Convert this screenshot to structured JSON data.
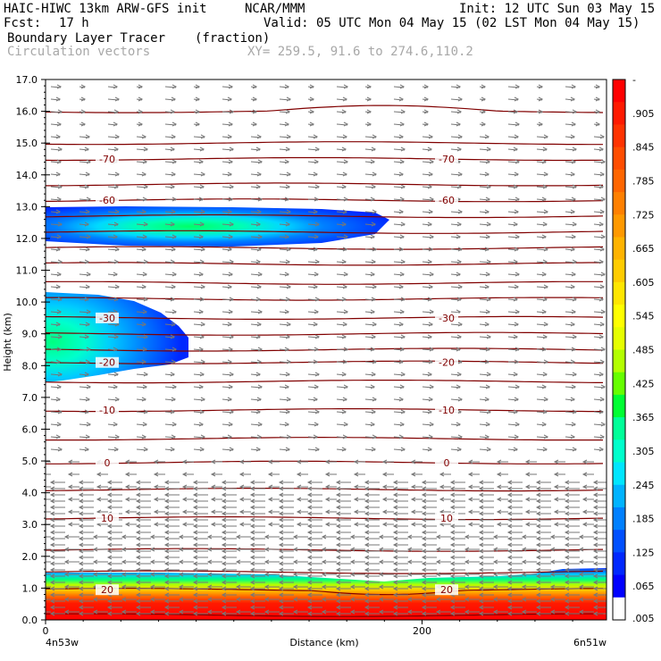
{
  "header": {
    "title": "HAIC-HIWC 13km ARW-GFS init",
    "org": "NCAR/MMM",
    "init": "Init: 12 UTC Sun 03 May 15",
    "fcst_label": "Fcst:",
    "fcst_value": "17 h",
    "valid": "Valid: 05 UTC Mon 04 May 15 (02 LST Mon 04 May 15)",
    "field": "Boundary Layer Tracer",
    "units": "(fraction)",
    "overlay": "Circulation vectors",
    "cross_section": "XY= 259.5, 91.6 to 274.6,110.2"
  },
  "chart_data": {
    "type": "heatmap",
    "xlabel": "Distance (km)",
    "ylabel": "Height (km)",
    "xlim": [
      0,
      298
    ],
    "ylim": [
      0,
      17
    ],
    "x_ticks": [
      "0",
      "200"
    ],
    "x_end_labels": [
      "4n53w",
      "6n51w"
    ],
    "y_ticks": [
      "0.0",
      "1.0",
      "2.0",
      "3.0",
      "4.0",
      "5.0",
      "6.0",
      "7.0",
      "8.0",
      "9.0",
      "10.0",
      "11.0",
      "12.0",
      "13.0",
      "14.0",
      "15.0",
      "16.0",
      "17.0"
    ],
    "colorbar": {
      "labels": [
        "-",
        ".905",
        ".845",
        ".785",
        ".725",
        ".665",
        ".605",
        ".545",
        ".485",
        ".425",
        ".365",
        ".305",
        ".245",
        ".185",
        ".125",
        ".065",
        ".005"
      ],
      "colors": [
        "#ff0000",
        "#ff1a00",
        "#ff3300",
        "#ff4d00",
        "#ff6600",
        "#ff8000",
        "#ff9900",
        "#ffb300",
        "#ffcc00",
        "#ffe600",
        "#ffff00",
        "#e6ff00",
        "#b3ff00",
        "#66ff00",
        "#00ff33",
        "#00ff99",
        "#00ffcc",
        "#00e6ff",
        "#00b3ff",
        "#0080ff",
        "#0050ff",
        "#0028ff",
        "#0000ff",
        "#ffffff"
      ]
    },
    "tracer_regions": [
      {
        "name": "boundary layer",
        "x": [
          0,
          298
        ],
        "y": [
          0.0,
          1.4
        ],
        "max": 0.99
      },
      {
        "name": "upper plume",
        "x": [
          0,
          190
        ],
        "y": [
          11.8,
          12.9
        ],
        "max": 0.35
      },
      {
        "name": "mid plume",
        "x": [
          0,
          78
        ],
        "y": [
          7.6,
          10.3
        ],
        "max": 0.4
      }
    ],
    "temperature_contours": [
      {
        "label": "-70",
        "height": 14.5
      },
      {
        "label": "-60",
        "height": 13.2
      },
      {
        "label": "-30",
        "height": 9.5
      },
      {
        "label": "-20",
        "height": 8.1
      },
      {
        "label": "-10",
        "height": 6.6
      },
      {
        "label": "0",
        "height": 4.95
      },
      {
        "label": "10",
        "height": 3.2
      },
      {
        "label": "20",
        "height": 0.95
      }
    ],
    "grid": false,
    "legend": "right colorbar"
  }
}
